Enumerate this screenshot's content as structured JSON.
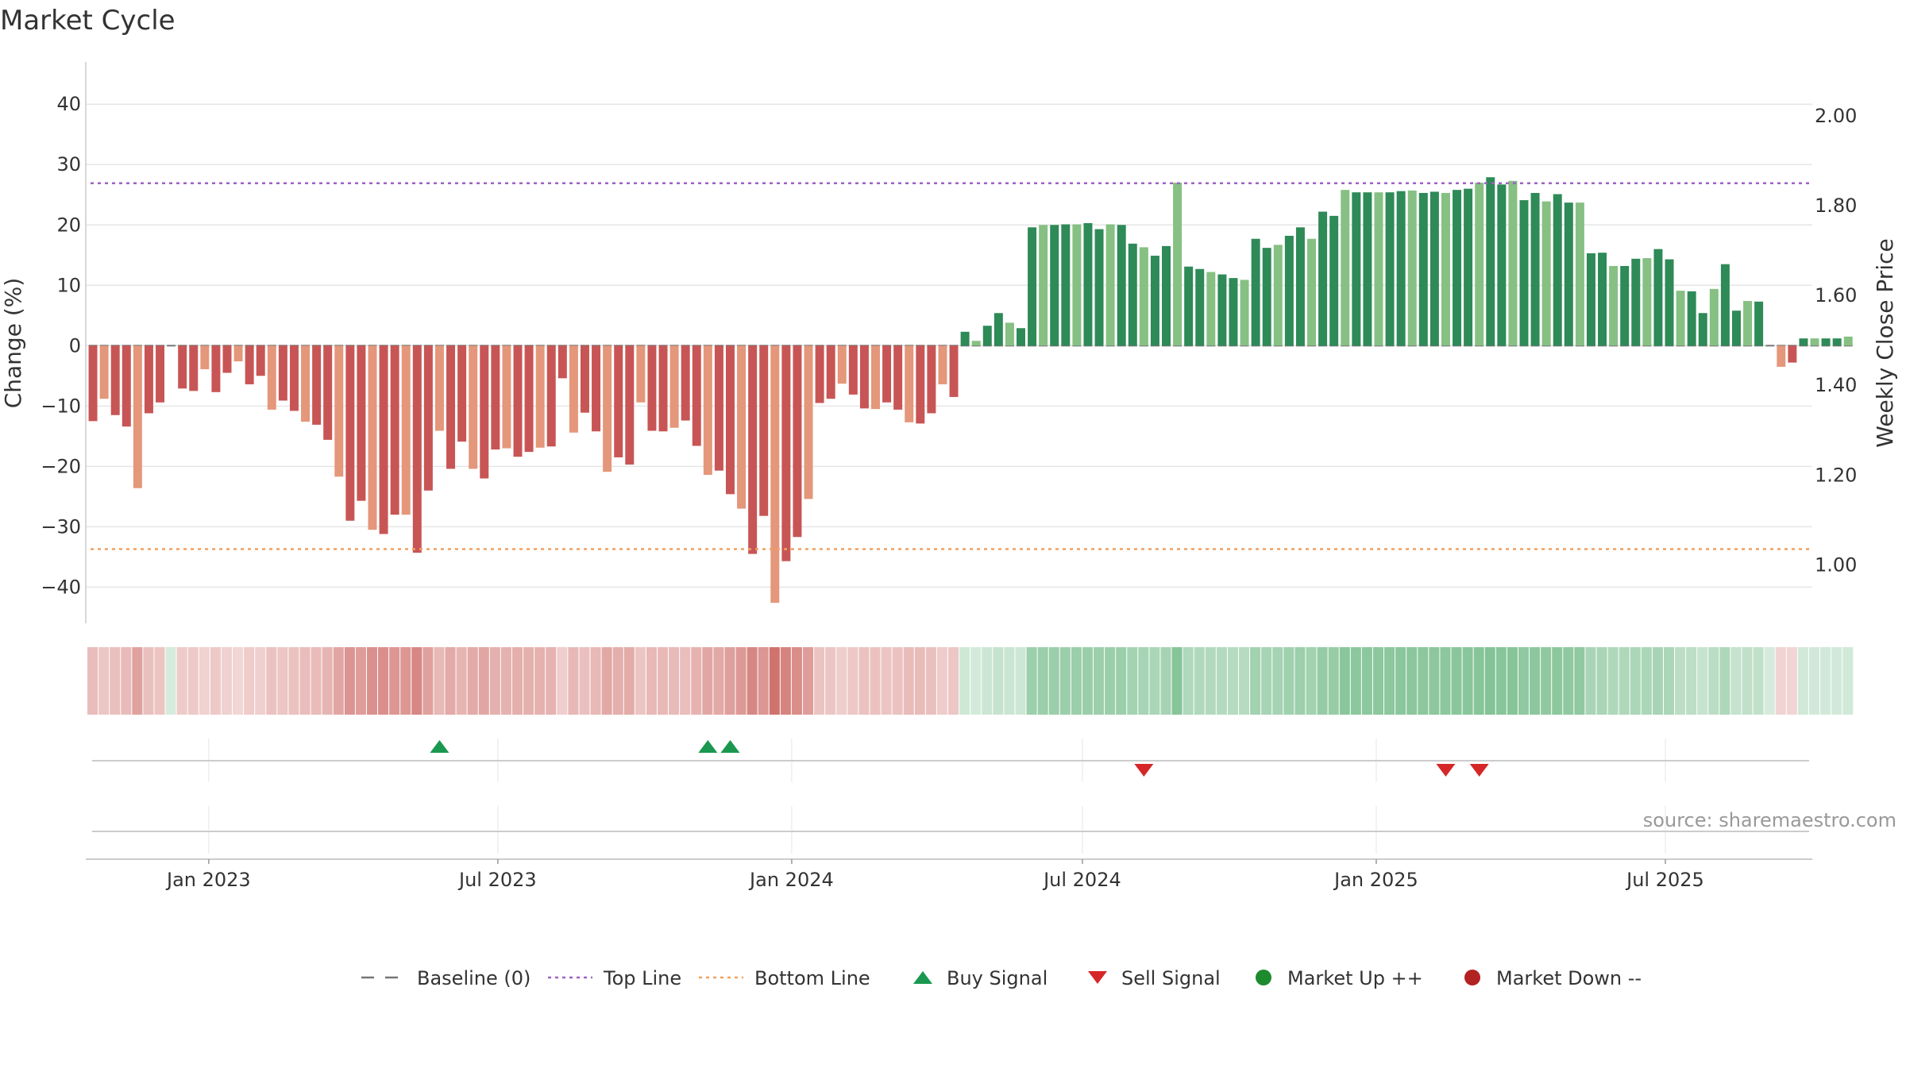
{
  "chart_data": {
    "type": "bar",
    "title": "Market Cycle",
    "ylabel": "Change (%)",
    "y2label": "Weekly Close Price",
    "ylim": [
      -46,
      47
    ],
    "y2lim": [
      0.87,
      2.12
    ],
    "yticks": [
      40,
      30,
      20,
      10,
      0,
      -10,
      -20,
      -30,
      -40
    ],
    "ytick_labels": [
      "40",
      "30",
      "20",
      "10",
      "0",
      "−10",
      "−20",
      "−30",
      "−40"
    ],
    "y2ticks": [
      2.0,
      1.8,
      1.6,
      1.4,
      1.2,
      1.0
    ],
    "y2tick_labels": [
      "2.00",
      "1.80",
      "1.60",
      "1.40",
      "1.20",
      "1.00"
    ],
    "x_start": "2022-10-16",
    "x_end": "2025-10-01",
    "week_start": "2022-10-17",
    "xticks": [
      {
        "date": "2023-01-01",
        "label": "Jan 2023"
      },
      {
        "date": "2023-07-01",
        "label": "Jul 2023"
      },
      {
        "date": "2024-01-01",
        "label": "Jan 2024"
      },
      {
        "date": "2024-07-01",
        "label": "Jul 2024"
      },
      {
        "date": "2025-01-01",
        "label": "Jan 2025"
      },
      {
        "date": "2025-07-01",
        "label": "Jul 2025"
      }
    ],
    "top_line": 26.9,
    "bottom_line": -33.7,
    "series": [
      {
        "name": "Change (%)",
        "values": [
          -12.5,
          -8.8,
          -11.5,
          -13.4,
          -23.6,
          -11.2,
          -9.4,
          0,
          -7.1,
          -7.5,
          -3.9,
          -7.7,
          -4.5,
          -2.6,
          -6.4,
          -5.0,
          -10.6,
          -9.1,
          -10.8,
          -12.6,
          -13.1,
          -15.6,
          -21.7,
          -29.0,
          -25.7,
          -30.5,
          -31.2,
          -28.0,
          -28.0,
          -34.3,
          -24.0,
          -14.1,
          -20.4,
          -15.9,
          -20.4,
          -22.0,
          -17.2,
          -17.0,
          -18.4,
          -17.6,
          -16.9,
          -16.7,
          -5.4,
          -14.4,
          -11.1,
          -14.2,
          -20.9,
          -18.5,
          -19.7,
          -9.4,
          -14.1,
          -14.2,
          -13.6,
          -12.4,
          -16.6,
          -21.4,
          -20.7,
          -24.6,
          -27.0,
          -34.5,
          -28.2,
          -42.6,
          -35.7,
          -31.7,
          -25.4,
          -9.5,
          -8.8,
          -6.3,
          -8.1,
          -10.4,
          -10.5,
          -9.4,
          -10.6,
          -12.7,
          -12.9,
          -11.2,
          -6.4,
          -8.5,
          2.3,
          0.8,
          3.3,
          5.4,
          3.8,
          2.9,
          19.6,
          20.0,
          20.0,
          20.1,
          20.1,
          20.3,
          19.3,
          20.1,
          20.0,
          16.9,
          16.3,
          14.9,
          16.5,
          27.0,
          13.1,
          12.7,
          12.2,
          11.8,
          11.2,
          10.9,
          17.7,
          16.2,
          16.7,
          18.2,
          19.6,
          17.7,
          22.2,
          21.5,
          25.8,
          25.4,
          25.4,
          25.4,
          25.4,
          25.6,
          25.7,
          25.3,
          25.5,
          25.3,
          25.8,
          26.0,
          27.0,
          27.9,
          26.7,
          27.3,
          24.1,
          25.3,
          23.9,
          25.1,
          23.7,
          23.7,
          15.3,
          15.4,
          13.2,
          13.2,
          14.4,
          14.5,
          16.0,
          14.3,
          9.1,
          9.0,
          5.4,
          9.4,
          13.5,
          5.8,
          7.4,
          7.3,
          0,
          -3.5,
          -2.8,
          1.2,
          1.2,
          1.2,
          1.2,
          1.5
        ]
      }
    ],
    "heat_strip": "Market cycle intensity strip (one cell per week, shaded from the same values)",
    "buy_signals": [
      "2023-05-22",
      "2023-11-06",
      "2023-11-20"
    ],
    "sell_signals": [
      "2024-08-05",
      "2025-02-10",
      "2025-03-03"
    ],
    "colors": {
      "bar_down_strong": "#c85555",
      "bar_down_light": "#e4977a",
      "bar_up_strong": "#2e8a57",
      "bar_up_light": "#86c083",
      "top_line": "#a061c0",
      "bottom_line": "#f0a060",
      "buy": "#1a9850",
      "sell": "#d62728",
      "market_up": "#1e8a2e",
      "market_down": "#b22222"
    },
    "legend": [
      {
        "label": "Baseline (0)",
        "kind": "dash"
      },
      {
        "label": "Top Line",
        "kind": "dot-purple"
      },
      {
        "label": "Bottom Line",
        "kind": "dot-orange"
      },
      {
        "label": "Buy Signal",
        "kind": "tri-up"
      },
      {
        "label": "Sell Signal",
        "kind": "tri-down"
      },
      {
        "label": "Market Up ++",
        "kind": "dot-green"
      },
      {
        "label": "Market Down --",
        "kind": "dot-red"
      }
    ],
    "legend_position": "bottom-center",
    "grid": true,
    "source": "source: sharemaestro.com"
  }
}
